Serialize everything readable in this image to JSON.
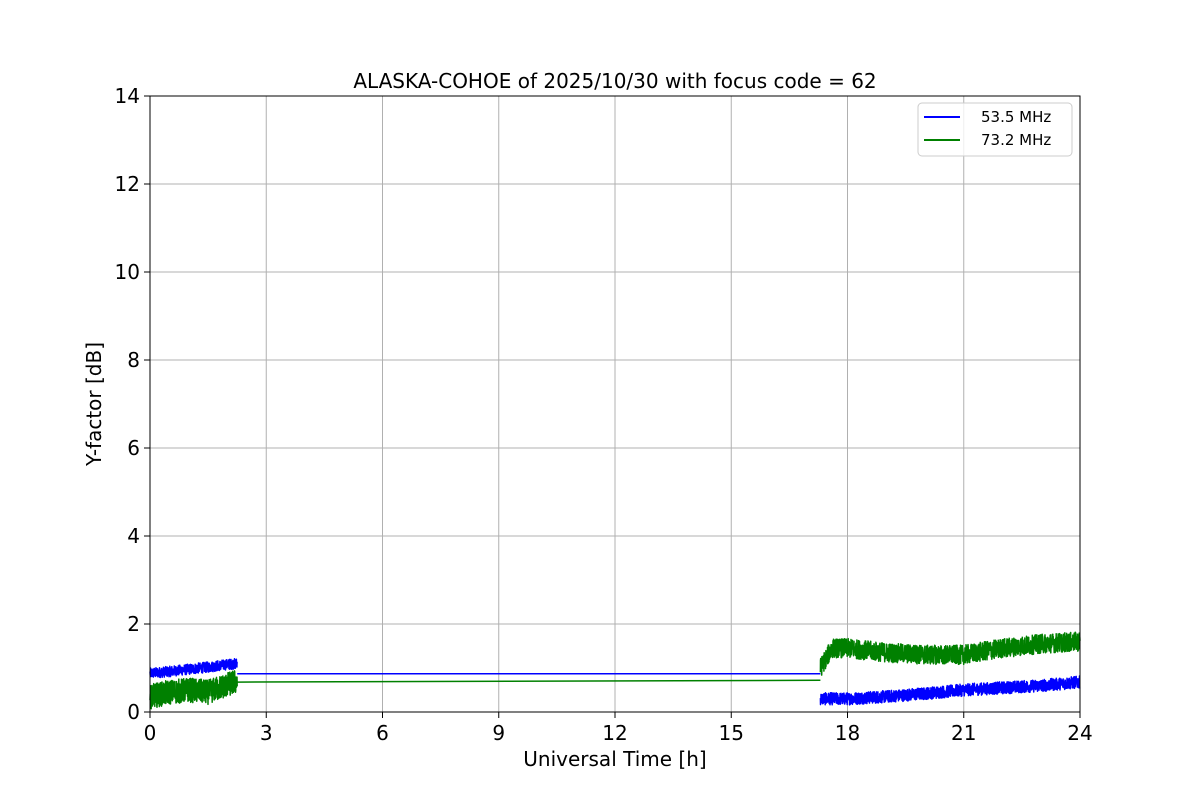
{
  "chart_data": {
    "type": "line",
    "title": "ALASKA-COHOE of 2025/10/30 with focus code = 62",
    "xlabel": "Universal Time [h]",
    "ylabel": "Y-factor [dB]",
    "xlim": [
      0,
      24
    ],
    "ylim": [
      0,
      14
    ],
    "xticks": [
      0,
      3,
      6,
      9,
      12,
      15,
      18,
      21,
      24
    ],
    "yticks": [
      0,
      2,
      4,
      6,
      8,
      10,
      12,
      14
    ],
    "grid": true,
    "legend_position": "top-right",
    "series": [
      {
        "name": "53.5 MHz",
        "color": "#0000ff",
        "segments": [
          {
            "x": [
              0.0,
              0.5,
              1.0,
              1.5,
              2.0,
              2.25
            ],
            "y": [
              0.88,
              0.92,
              0.97,
              1.02,
              1.08,
              1.1
            ],
            "noise": 0.12
          },
          {
            "x": [
              2.25,
              17.3
            ],
            "y": [
              0.87,
              0.87
            ],
            "noise": 0
          },
          {
            "x": [
              17.3,
              18.0,
              19.0,
              20.0,
              21.0,
              22.0,
              23.0,
              24.0
            ],
            "y": [
              0.3,
              0.3,
              0.35,
              0.42,
              0.5,
              0.55,
              0.6,
              0.68
            ],
            "noise": 0.14
          }
        ]
      },
      {
        "name": "73.2 MHz",
        "color": "#008000",
        "segments": [
          {
            "x": [
              0.0,
              0.5,
              1.0,
              1.5,
              2.0,
              2.25
            ],
            "y": [
              0.35,
              0.45,
              0.5,
              0.45,
              0.62,
              0.7
            ],
            "noise": 0.28
          },
          {
            "x": [
              2.25,
              17.3
            ],
            "y": [
              0.68,
              0.72
            ],
            "noise": 0
          },
          {
            "x": [
              17.3,
              17.6,
              18.0,
              19.0,
              20.0,
              21.0,
              22.0,
              23.0,
              24.0
            ],
            "y": [
              1.0,
              1.45,
              1.45,
              1.35,
              1.3,
              1.3,
              1.45,
              1.55,
              1.6
            ],
            "noise": 0.22
          }
        ]
      }
    ]
  }
}
